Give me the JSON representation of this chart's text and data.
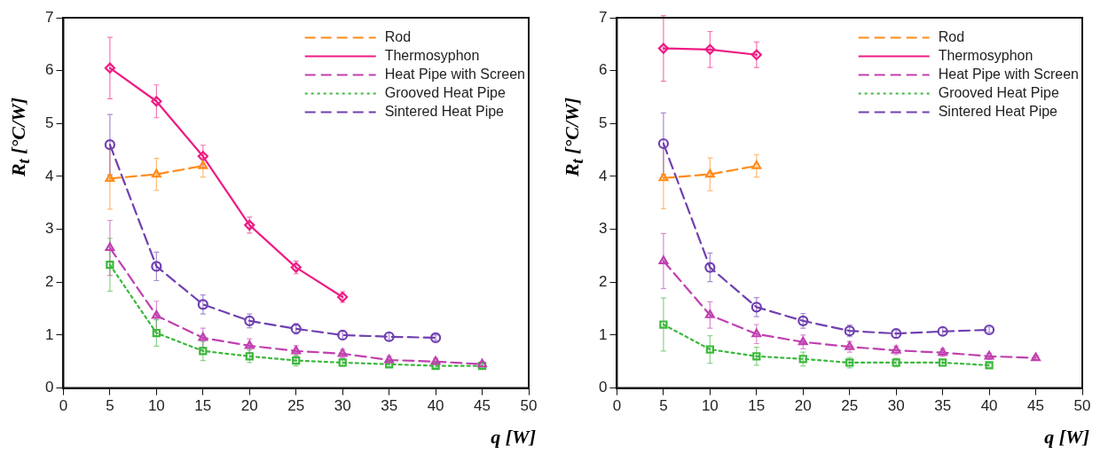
{
  "chart_data": [
    {
      "type": "line",
      "xlabel": "q [W]",
      "ylabel": "R$_{t}$ [°C/W]",
      "xlim": [
        0,
        50
      ],
      "ylim": [
        0,
        7
      ],
      "xticks": [
        0,
        5,
        10,
        15,
        20,
        25,
        30,
        35,
        40,
        45,
        50
      ],
      "yticks": [
        0,
        1,
        2,
        3,
        4,
        5,
        6,
        7
      ],
      "grid": false,
      "legend": "top right",
      "series": [
        {
          "name": "Rod",
          "color": "#ff8c1a",
          "marker": "triangle",
          "line_style": "dashed",
          "x": [
            5,
            10,
            15
          ],
          "values": [
            3.96,
            4.04,
            4.2
          ],
          "errors": [
            0.58,
            0.3,
            0.21
          ]
        },
        {
          "name": "Thermosyphon",
          "color": "#ee1c84",
          "marker": "diamond",
          "line_style": "solid",
          "x": [
            5,
            10,
            15,
            20,
            25,
            30
          ],
          "values": [
            6.05,
            5.42,
            4.38,
            3.08,
            2.28,
            1.72
          ],
          "errors": [
            0.58,
            0.31,
            0.21,
            0.15,
            0.12,
            0.1
          ]
        },
        {
          "name": "Heat Pipe with Screen",
          "color": "#c040b0",
          "marker": "triangle",
          "line_style": "dashed",
          "x": [
            5,
            10,
            15,
            20,
            25,
            30,
            35,
            40,
            45
          ],
          "values": [
            2.65,
            1.37,
            0.95,
            0.8,
            0.7,
            0.65,
            0.53,
            0.5,
            0.45
          ],
          "errors": [
            0.52,
            0.27,
            0.18,
            0.13,
            0.1,
            0.08,
            0.07,
            0.06,
            0.05
          ]
        },
        {
          "name": "Grooved Heat Pipe",
          "color": "#3cb83c",
          "marker": "square",
          "line_style": "dotted",
          "x": [
            5,
            10,
            15,
            20,
            25,
            30,
            35,
            40,
            45
          ],
          "values": [
            2.33,
            1.04,
            0.7,
            0.6,
            0.52,
            0.48,
            0.45,
            0.42,
            0.42
          ],
          "errors": [
            0.5,
            0.25,
            0.18,
            0.12,
            0.1,
            0.07,
            0.05,
            0.04,
            0.04
          ]
        },
        {
          "name": "Sintered Heat Pipe",
          "color": "#7040b0",
          "marker": "circle",
          "line_style": "dashed",
          "x": [
            5,
            10,
            15,
            20,
            25,
            30,
            35,
            40
          ],
          "values": [
            4.6,
            2.3,
            1.58,
            1.27,
            1.12,
            1.0,
            0.97,
            0.95
          ],
          "errors": [
            0.57,
            0.27,
            0.18,
            0.13,
            0.1,
            0.08,
            0.07,
            0.05
          ]
        }
      ]
    },
    {
      "type": "line",
      "xlabel": "q [W]",
      "ylabel": "R$_{t}$ [°C/W]",
      "xlim": [
        0,
        50
      ],
      "ylim": [
        0,
        7
      ],
      "xticks": [
        0,
        5,
        10,
        15,
        20,
        25,
        30,
        35,
        40,
        45,
        50
      ],
      "yticks": [
        0,
        1,
        2,
        3,
        4,
        5,
        6,
        7
      ],
      "grid": false,
      "legend": "top right",
      "series": [
        {
          "name": "Rod",
          "color": "#ff8c1a",
          "marker": "triangle",
          "line_style": "dashed",
          "x": [
            5,
            10,
            15
          ],
          "values": [
            3.97,
            4.04,
            4.2
          ],
          "errors": [
            0.58,
            0.31,
            0.21
          ]
        },
        {
          "name": "Thermosyphon",
          "color": "#ee1c84",
          "marker": "diamond",
          "line_style": "solid",
          "x": [
            5,
            10,
            15
          ],
          "values": [
            6.42,
            6.4,
            6.3
          ],
          "errors": [
            0.62,
            0.34,
            0.24
          ]
        },
        {
          "name": "Heat Pipe with Screen",
          "color": "#c040b0",
          "marker": "triangle",
          "line_style": "dashed",
          "x": [
            5,
            10,
            15,
            20,
            25,
            30,
            35,
            40,
            45
          ],
          "values": [
            2.4,
            1.38,
            1.02,
            0.87,
            0.78,
            0.71,
            0.67,
            0.6,
            0.57
          ],
          "errors": [
            0.52,
            0.25,
            0.18,
            0.13,
            0.1,
            0.08,
            0.07,
            0.06,
            0.04
          ]
        },
        {
          "name": "Grooved Heat Pipe",
          "color": "#3cb83c",
          "marker": "square",
          "line_style": "dotted",
          "x": [
            5,
            10,
            15,
            20,
            25,
            30,
            35,
            40
          ],
          "values": [
            1.2,
            0.73,
            0.6,
            0.55,
            0.48,
            0.48,
            0.48,
            0.43
          ],
          "errors": [
            0.5,
            0.26,
            0.17,
            0.13,
            0.1,
            0.08,
            0.06,
            0.04
          ]
        },
        {
          "name": "Sintered Heat Pipe",
          "color": "#7040b0",
          "marker": "circle",
          "line_style": "dashed",
          "x": [
            5,
            10,
            15,
            20,
            25,
            30,
            35,
            40
          ],
          "values": [
            4.62,
            2.28,
            1.53,
            1.27,
            1.08,
            1.03,
            1.07,
            1.1
          ],
          "errors": [
            0.58,
            0.27,
            0.18,
            0.14,
            0.11,
            0.08,
            0.07,
            0.05
          ]
        }
      ]
    }
  ]
}
